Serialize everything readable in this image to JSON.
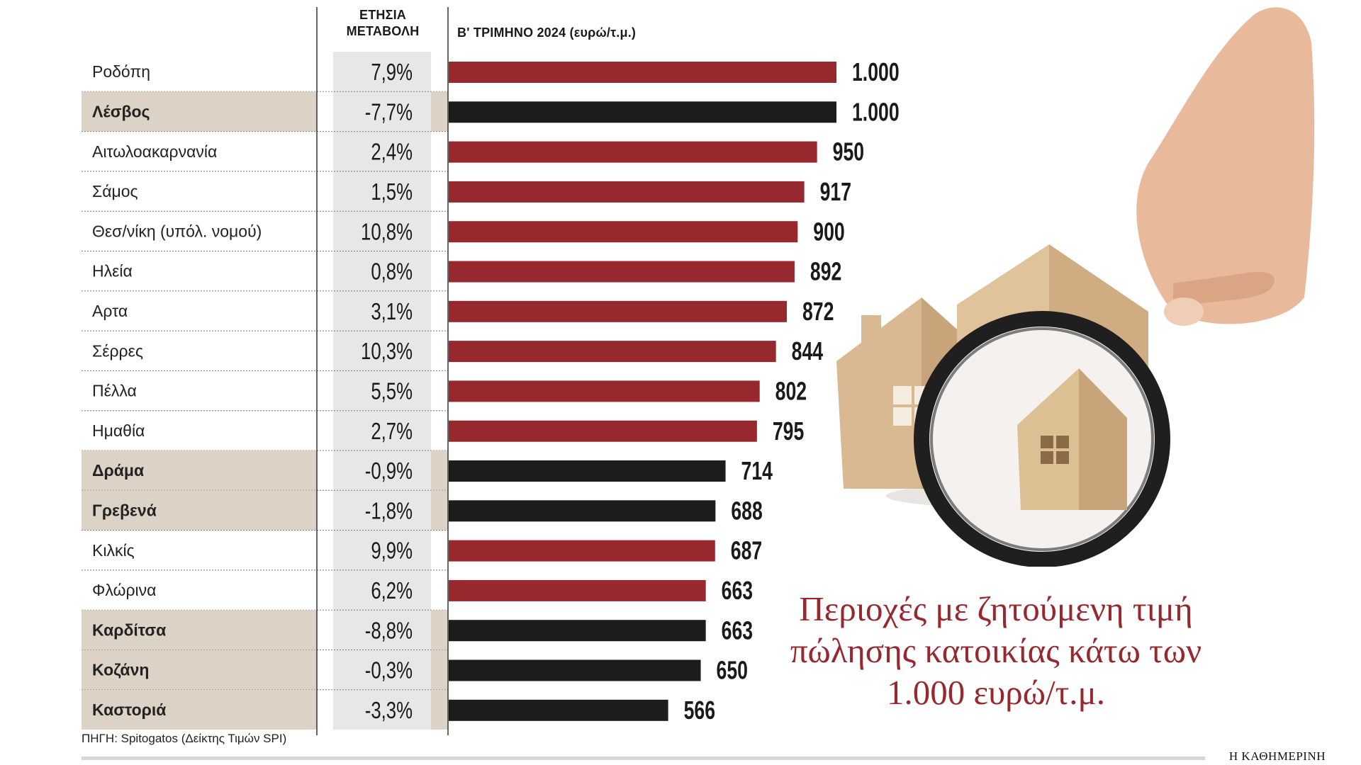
{
  "header": {
    "annual_change_label": "ΕΤΗΣΙΑ ΜΕΤΑΒΟΛΗ",
    "value_label": "Β' ΤΡΙΜΗΝΟ 2024 (ευρώ/τ.μ.)"
  },
  "headline": "Περιοχές με ζητούμενη τιμή πώλησης κατοικίας κάτω των 1.000 ευρώ/τ.μ.",
  "source": "ΠΗΓΗ: Spitogatos (Δείκτης Τιμών SPI)",
  "brand": "Η ΚΑΘΗΜΕΡΙΝΗ",
  "colors": {
    "positive_bar": "#96282e",
    "negative_bar": "#1c1c1c",
    "highlight_row": "#dcd2c6",
    "change_column": "#e7e7e7",
    "headline": "#96282e"
  },
  "chart_data": {
    "type": "bar",
    "orientation": "horizontal",
    "xlim": [
      0,
      1000
    ],
    "grid": false,
    "categories": [
      "Ροδόπη",
      "Λέσβος",
      "Αιτωλοακαρνανία",
      "Σάμος",
      "Θεσ/νίκη (υπόλ. νομού)",
      "Ηλεία",
      "Αρτα",
      "Σέρρες",
      "Πέλλα",
      "Ημαθία",
      "Δράμα",
      "Γρεβενά",
      "Κιλκίς",
      "Φλώρινα",
      "Καρδίτσα",
      "Κοζάνη",
      "Καστοριά"
    ],
    "values": [
      1000,
      1000,
      950,
      917,
      900,
      892,
      872,
      844,
      802,
      795,
      714,
      688,
      687,
      663,
      663,
      650,
      566
    ],
    "value_labels": [
      "1.000",
      "1.000",
      "950",
      "917",
      "900",
      "892",
      "872",
      "844",
      "802",
      "795",
      "714",
      "688",
      "687",
      "663",
      "663",
      "650",
      "566"
    ],
    "annual_change": [
      7.9,
      -7.7,
      2.4,
      1.5,
      10.8,
      0.8,
      3.1,
      10.3,
      5.5,
      2.7,
      -0.9,
      -1.8,
      9.9,
      6.2,
      -8.8,
      -0.3,
      -3.3
    ],
    "annual_change_labels": [
      "7,9%",
      "-7,7%",
      "2,4%",
      "1,5%",
      "10,8%",
      "0,8%",
      "3,1%",
      "10,3%",
      "5,5%",
      "2,7%",
      "-0,9%",
      "-1,8%",
      "9,9%",
      "6,2%",
      "-8,8%",
      "-0,3%",
      "-3,3%"
    ]
  }
}
